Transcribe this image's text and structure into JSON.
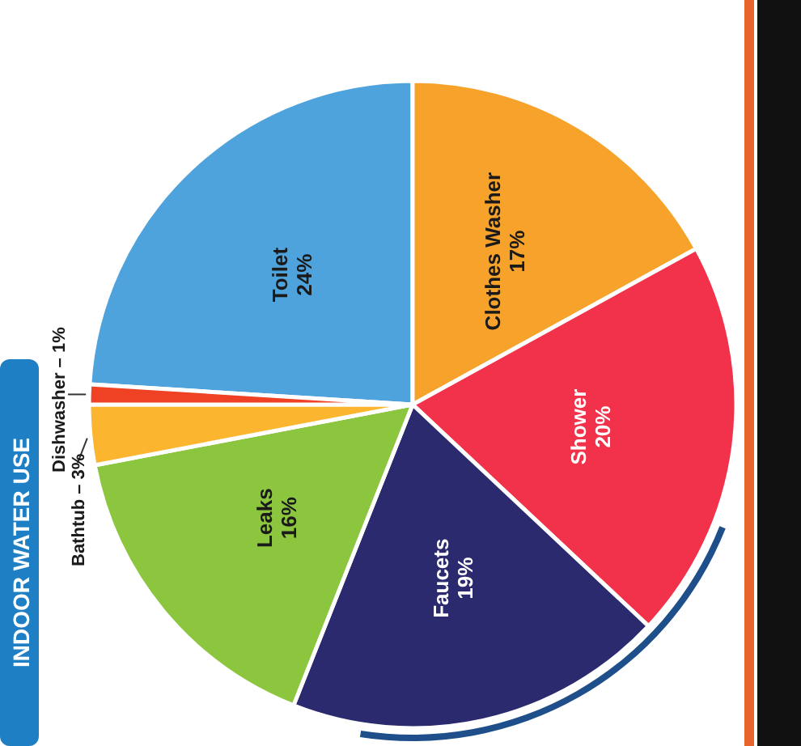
{
  "chart_data": {
    "type": "pie",
    "title": "INDOOR WATER USE",
    "categories": [
      "Toilet",
      "Clothes Washer",
      "Shower",
      "Faucets",
      "Leaks",
      "Bathtub",
      "Dishwasher"
    ],
    "values": [
      24,
      17,
      20,
      19,
      16,
      3,
      1
    ],
    "colors": [
      "#4ea3dc",
      "#f7a22b",
      "#f2314a",
      "#2b2a6e",
      "#8cc63f",
      "#fbb52f",
      "#ef4123"
    ],
    "value_labels": [
      "24%",
      "17%",
      "20%",
      "19%",
      "16%",
      "3%",
      "1%"
    ]
  }
}
